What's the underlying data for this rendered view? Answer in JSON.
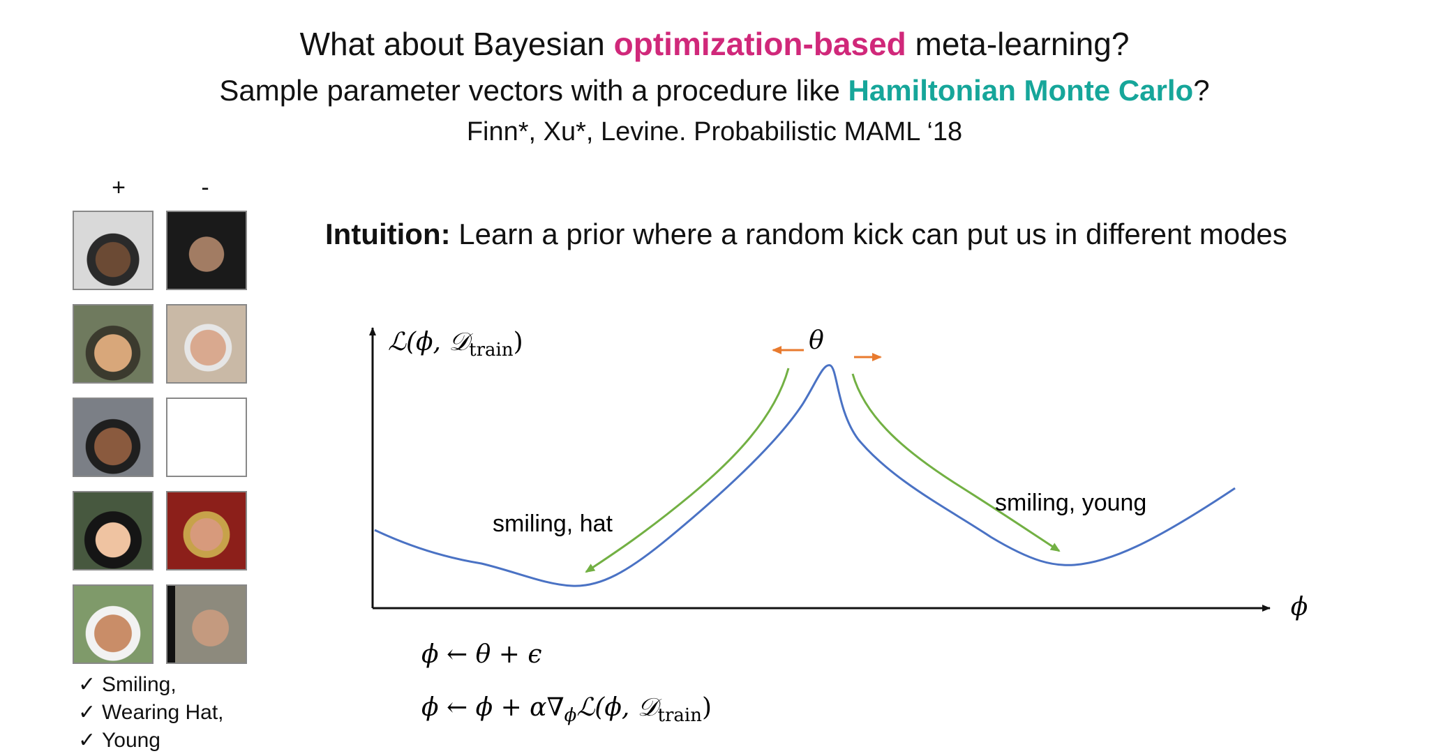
{
  "slide": {
    "title_prefix": "What about Bayesian ",
    "title_highlight": "optimization-based",
    "title_suffix": " meta-learning?",
    "subtitle_prefix": "Sample parameter vectors with a procedure like ",
    "subtitle_highlight": "Hamiltonian Monte Carlo",
    "subtitle_suffix": "?",
    "citation": "Finn*, Xu*, Levine. Probabilistic MAML ‘18",
    "intuition_label": "Intuition:",
    "intuition_text": " Learn a prior where a random kick can put us in different modes",
    "colors": {
      "pink": "#d0287a",
      "teal": "#16a69a",
      "curve": "#4a72c4",
      "arrow_green": "#72b043",
      "arrow_orange": "#e87a2e"
    }
  },
  "faces": {
    "positive_header": "+",
    "negative_header": "-",
    "attributes": [
      "Smiling,",
      "Wearing Hat,",
      "Young"
    ],
    "check_symbol": "✓"
  },
  "plot": {
    "ylabel_L": "ℒ",
    "ylabel_open": "(ϕ, ",
    "ylabel_D": "𝒟",
    "ylabel_sub": "train",
    "ylabel_close": ")",
    "xlabel": "ϕ",
    "theta_label": "θ",
    "mode_left": "smiling, hat",
    "mode_right": "smiling, young"
  },
  "equations": {
    "eq1": "ϕ ← θ + ϵ",
    "eq2_main": "ϕ ← ϕ + α∇",
    "eq2_sub_phi": "ϕ",
    "eq2_L": "ℒ(ϕ, ",
    "eq2_D": "𝒟",
    "eq2_sub": "train",
    "eq2_close": ")"
  }
}
